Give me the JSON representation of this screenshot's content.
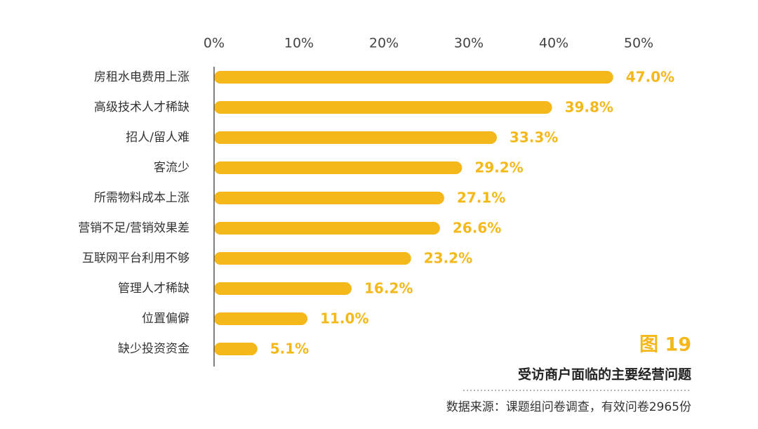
{
  "chart_data": {
    "type": "bar",
    "orientation": "horizontal",
    "figure_label": "图 19",
    "title": "受访商户面临的主要经营问题",
    "source": "数据来源：课题组问卷调查，有效问卷2965份",
    "color": "#f5b81b",
    "categories": [
      "房租水电费用上涨",
      "高级技术人才稀缺",
      "招人/留人难",
      "客流少",
      "所需物料成本上涨",
      "营销不足/营销效果差",
      "互联网平台利用不够",
      "管理人才稀缺",
      "位置偏僻",
      "缺少投资资金"
    ],
    "values": [
      47.0,
      39.8,
      33.3,
      29.2,
      27.1,
      26.6,
      23.2,
      16.2,
      11.0,
      5.1
    ],
    "value_labels": [
      "47.0%",
      "39.8%",
      "33.3%",
      "29.2%",
      "27.1%",
      "26.6%",
      "23.2%",
      "16.2%",
      "11.0%",
      "5.1%"
    ],
    "xlim": [
      0,
      50
    ],
    "xticks": [
      {
        "value": 0,
        "label": "0%"
      },
      {
        "value": 10,
        "label": "10%"
      },
      {
        "value": 20,
        "label": "20%"
      },
      {
        "value": 30,
        "label": "30%"
      },
      {
        "value": 40,
        "label": "40%"
      },
      {
        "value": 50,
        "label": "50%"
      }
    ]
  }
}
